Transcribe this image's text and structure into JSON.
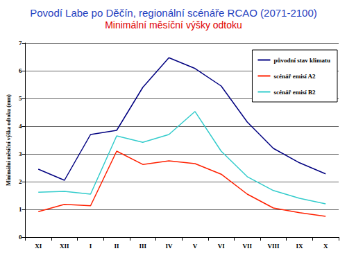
{
  "chart_data": {
    "type": "line",
    "title": "Povodí Labe po Děčín, regionální scénáře RCAO (2071-2100)",
    "subtitle": "Minimální měsíční výšky odtoku",
    "y_label": "Minimální měsíční výška odtoku (mm)",
    "categories": [
      "XI",
      "XII",
      "I",
      "II",
      "III",
      "IV",
      "V",
      "VI",
      "VII",
      "VIII",
      "IX",
      "X"
    ],
    "series": [
      {
        "name": "původní stav klimatu",
        "color": "#000080",
        "values": [
          2.45,
          2.05,
          3.7,
          3.85,
          5.4,
          6.47,
          6.08,
          5.45,
          4.15,
          3.2,
          2.68,
          2.28
        ]
      },
      {
        "name": "scénář emisí A2",
        "color": "#ff2000",
        "values": [
          0.92,
          1.18,
          1.13,
          3.1,
          2.62,
          2.75,
          2.65,
          2.27,
          1.55,
          1.05,
          0.88,
          0.75
        ]
      },
      {
        "name": "scénář emisí B2",
        "color": "#33cccc",
        "values": [
          1.62,
          1.65,
          1.55,
          3.65,
          3.42,
          3.7,
          4.53,
          3.1,
          2.18,
          1.68,
          1.4,
          1.2
        ]
      }
    ],
    "ylim": [
      0,
      7
    ],
    "yticks": [
      0,
      1,
      2,
      3,
      4,
      5,
      6,
      7
    ],
    "grid": true,
    "legend": "upper right",
    "marker": "none"
  }
}
